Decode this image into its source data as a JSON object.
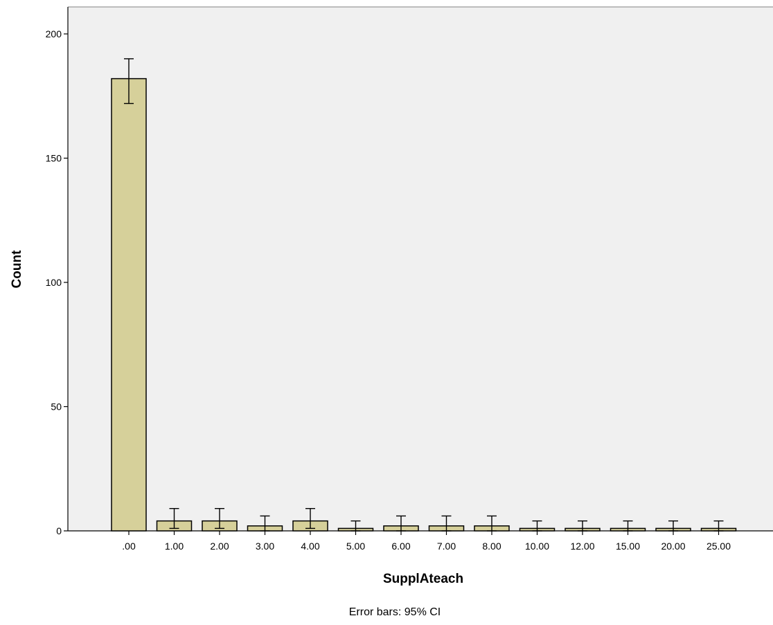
{
  "chart_data": {
    "type": "bar",
    "title": "",
    "xlabel": "SupplAteach",
    "ylabel": "Count",
    "footnote": "Error bars: 95% CI",
    "categories": [
      ".00",
      "1.00",
      "2.00",
      "3.00",
      "4.00",
      "5.00",
      "6.00",
      "7.00",
      "8.00",
      "10.00",
      "12.00",
      "15.00",
      "20.00",
      "25.00"
    ],
    "values": [
      182,
      4,
      4,
      2,
      4,
      1,
      2,
      2,
      2,
      1,
      1,
      1,
      1,
      1
    ],
    "error_low": [
      172,
      1,
      1,
      0,
      1,
      0,
      0,
      0,
      0,
      0,
      0,
      0,
      0,
      0
    ],
    "error_high": [
      190,
      9,
      9,
      6,
      9,
      4,
      6,
      6,
      6,
      4,
      4,
      4,
      4,
      4
    ],
    "ylim": [
      0,
      210
    ],
    "yticks": [
      0,
      50,
      100,
      150,
      200
    ],
    "grid": false,
    "legend": "none",
    "colors": {
      "bar_fill": "#d6d09a",
      "bar_stroke": "#000000",
      "plot_background": "#f0f0f0",
      "error_bar": "#000000"
    }
  }
}
